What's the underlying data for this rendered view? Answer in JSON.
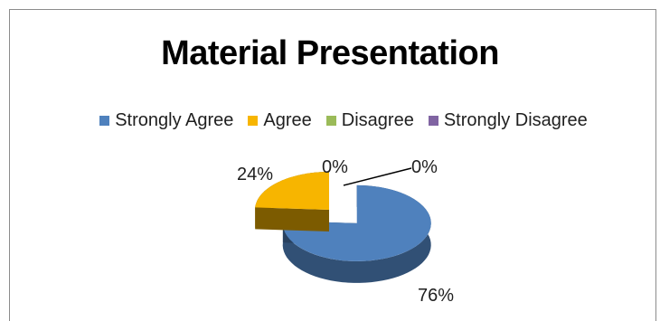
{
  "chart_data": {
    "type": "pie",
    "title": "Material Presentation",
    "categories": [
      "Strongly Agree",
      "Agree",
      "Disagree",
      "Strongly Disagree"
    ],
    "values": [
      76,
      24,
      0,
      0
    ],
    "data_labels": [
      "76%",
      "24%",
      "0%",
      "0%"
    ],
    "colors": [
      "#4F81BD",
      "#F7B500",
      "#9BBB59",
      "#8064A2"
    ],
    "legend_position": "top",
    "style": "3d-exploded"
  }
}
